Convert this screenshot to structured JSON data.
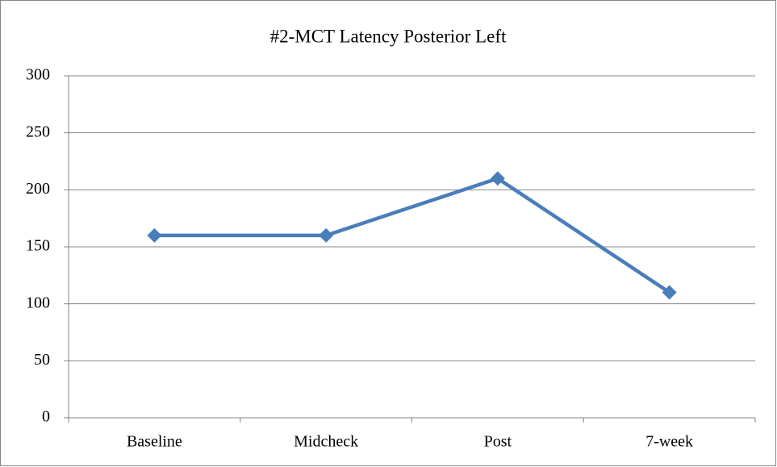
{
  "chart_data": {
    "type": "line",
    "title": "#2-MCT Latency Posterior Left",
    "categories": [
      "Baseline",
      "Midcheck",
      "Post",
      "7-week"
    ],
    "series": [
      {
        "name": "#2-MCT Latency Posterior Left",
        "color": "#4a7ebb",
        "values": [
          160,
          160,
          210,
          110
        ]
      }
    ],
    "ylim": [
      0,
      300
    ],
    "yticks": [
      0,
      50,
      100,
      150,
      200,
      250,
      300
    ],
    "grid": true
  }
}
